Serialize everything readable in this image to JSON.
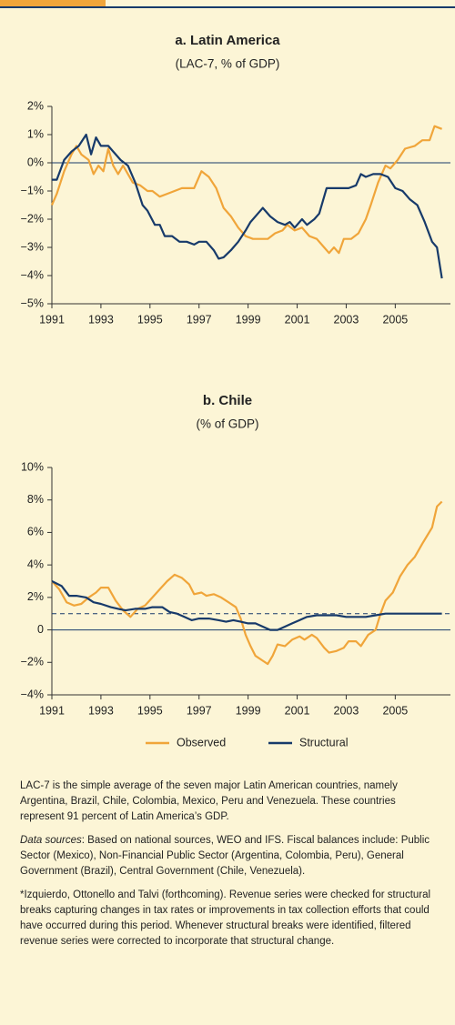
{
  "chart_data": [
    {
      "type": "line",
      "title": "a. Latin America",
      "subtitle": "(LAC-7, % of GDP)",
      "xlim": [
        1991,
        2007.25
      ],
      "xticks": [
        1991,
        1993,
        1995,
        1997,
        1999,
        2001,
        2003,
        2005
      ],
      "ylim": [
        -5,
        2
      ],
      "yticks": [
        {
          "value": 2,
          "label": "2%"
        },
        {
          "value": 1,
          "label": "1%"
        },
        {
          "value": 0,
          "label": "0%"
        },
        {
          "value": -1,
          "label": "−1%"
        },
        {
          "value": -2,
          "label": "−2%"
        },
        {
          "value": -3,
          "label": "−3%"
        },
        {
          "value": -4,
          "label": "−4%"
        },
        {
          "value": -5,
          "label": "−5%"
        }
      ],
      "series": [
        {
          "color": "#f0a53a",
          "x": [
            1991.0,
            1991.2,
            1991.5,
            1991.8,
            1992.0,
            1992.2,
            1992.5,
            1992.7,
            1992.9,
            1993.1,
            1993.3,
            1993.5,
            1993.7,
            1993.9,
            1994.1,
            1994.3,
            1994.6,
            1994.9,
            1995.1,
            1995.4,
            1995.7,
            1996.0,
            1996.3,
            1996.8,
            1997.1,
            1997.4,
            1997.7,
            1998.0,
            1998.3,
            1998.6,
            1998.9,
            1999.2,
            1999.5,
            1999.8,
            2000.1,
            2000.4,
            2000.6,
            2000.9,
            2001.2,
            2001.5,
            2001.8,
            2002.1,
            2002.3,
            2002.5,
            2002.7,
            2002.9,
            2003.2,
            2003.5,
            2003.8,
            2004.0,
            2004.3,
            2004.6,
            2004.8,
            2005.1,
            2005.4,
            2005.8,
            2006.1,
            2006.4,
            2006.6,
            2006.9
          ],
          "values": [
            -1.5,
            -1.1,
            -0.3,
            0.3,
            0.6,
            0.3,
            0.1,
            -0.4,
            -0.1,
            -0.3,
            0.5,
            -0.1,
            -0.4,
            -0.1,
            -0.4,
            -0.7,
            -0.8,
            -1.0,
            -1.0,
            -1.2,
            -1.1,
            -1.0,
            -0.9,
            -0.9,
            -0.3,
            -0.5,
            -0.9,
            -1.6,
            -1.9,
            -2.3,
            -2.6,
            -2.7,
            -2.7,
            -2.7,
            -2.5,
            -2.4,
            -2.2,
            -2.4,
            -2.3,
            -2.6,
            -2.7,
            -3.0,
            -3.2,
            -3.0,
            -3.2,
            -2.7,
            -2.7,
            -2.5,
            -2.0,
            -1.5,
            -0.7,
            -0.1,
            -0.2,
            0.1,
            0.5,
            0.6,
            0.8,
            0.8,
            1.3,
            1.2
          ]
        },
        {
          "color": "#173a6a",
          "x": [
            1991.0,
            1991.2,
            1991.5,
            1991.8,
            1992.1,
            1992.4,
            1992.6,
            1992.8,
            1993.0,
            1993.3,
            1993.5,
            1993.8,
            1994.1,
            1994.4,
            1994.7,
            1994.9,
            1995.2,
            1995.4,
            1995.6,
            1995.9,
            1996.2,
            1996.5,
            1996.8,
            1997.0,
            1997.3,
            1997.6,
            1997.8,
            1998.0,
            1998.3,
            1998.6,
            1998.9,
            1999.1,
            1999.4,
            1999.6,
            1999.9,
            2000.2,
            2000.5,
            2000.7,
            2000.9,
            2001.2,
            2001.4,
            2001.7,
            2001.9,
            2002.2,
            2002.5,
            2002.8,
            2003.1,
            2003.4,
            2003.6,
            2003.8,
            2004.1,
            2004.4,
            2004.7,
            2005.0,
            2005.3,
            2005.6,
            2005.9,
            2006.2,
            2006.5,
            2006.7,
            2006.9
          ],
          "values": [
            -0.6,
            -0.6,
            0.1,
            0.4,
            0.6,
            1.0,
            0.3,
            0.9,
            0.6,
            0.6,
            0.4,
            0.1,
            -0.1,
            -0.7,
            -1.5,
            -1.7,
            -2.2,
            -2.2,
            -2.6,
            -2.6,
            -2.8,
            -2.8,
            -2.9,
            -2.8,
            -2.8,
            -3.1,
            -3.4,
            -3.35,
            -3.1,
            -2.8,
            -2.4,
            -2.1,
            -1.8,
            -1.6,
            -1.9,
            -2.1,
            -2.2,
            -2.1,
            -2.3,
            -2.0,
            -2.2,
            -2.0,
            -1.8,
            -0.9,
            -0.9,
            -0.9,
            -0.9,
            -0.8,
            -0.4,
            -0.5,
            -0.4,
            -0.4,
            -0.5,
            -0.9,
            -1.0,
            -1.3,
            -1.5,
            -2.1,
            -2.8,
            -3.0,
            -4.1
          ]
        }
      ]
    },
    {
      "type": "line",
      "title": "b. Chile",
      "subtitle": "(% of GDP)",
      "xlim": [
        1991,
        2007.25
      ],
      "xticks": [
        1991,
        1993,
        1995,
        1997,
        1999,
        2001,
        2003,
        2005
      ],
      "ylim": [
        -4,
        10
      ],
      "yticks": [
        {
          "value": 10,
          "label": "10%"
        },
        {
          "value": 8,
          "label": "8%"
        },
        {
          "value": 6,
          "label": "6%"
        },
        {
          "value": 4,
          "label": "4%"
        },
        {
          "value": 2,
          "label": "2%"
        },
        {
          "value": 0,
          "label": "0"
        },
        {
          "value": -2,
          "label": "−2%"
        },
        {
          "value": -4,
          "label": "−4%"
        }
      ],
      "hline": 1,
      "series": [
        {
          "name": "Observed",
          "color": "#f0a53a",
          "x": [
            1991.0,
            1991.3,
            1991.6,
            1991.9,
            1992.2,
            1992.5,
            1992.8,
            1993.0,
            1993.3,
            1993.6,
            1993.9,
            1994.2,
            1994.5,
            1994.8,
            1995.1,
            1995.4,
            1995.7,
            1996.0,
            1996.3,
            1996.6,
            1996.8,
            1997.1,
            1997.3,
            1997.6,
            1997.9,
            1998.2,
            1998.5,
            1998.7,
            1998.9,
            1999.1,
            1999.3,
            1999.6,
            1999.8,
            2000.0,
            2000.2,
            2000.5,
            2000.8,
            2001.1,
            2001.3,
            2001.6,
            2001.8,
            2002.1,
            2002.3,
            2002.6,
            2002.9,
            2003.1,
            2003.4,
            2003.6,
            2003.9,
            2004.2,
            2004.4,
            2004.6,
            2004.9,
            2005.2,
            2005.5,
            2005.8,
            2006.1,
            2006.3,
            2006.5,
            2006.7,
            2006.9
          ],
          "values": [
            3.0,
            2.5,
            1.7,
            1.5,
            1.6,
            2.0,
            2.3,
            2.6,
            2.6,
            1.8,
            1.2,
            0.8,
            1.3,
            1.5,
            2.0,
            2.5,
            3.0,
            3.4,
            3.2,
            2.8,
            2.2,
            2.3,
            2.1,
            2.2,
            2.0,
            1.7,
            1.4,
            0.7,
            -0.3,
            -1.0,
            -1.6,
            -1.9,
            -2.1,
            -1.6,
            -0.9,
            -1.0,
            -0.6,
            -0.4,
            -0.6,
            -0.3,
            -0.5,
            -1.1,
            -1.4,
            -1.3,
            -1.1,
            -0.7,
            -0.7,
            -1.0,
            -0.3,
            0.0,
            1.0,
            1.8,
            2.3,
            3.3,
            4.0,
            4.5,
            5.3,
            5.8,
            6.3,
            7.6,
            7.9
          ]
        },
        {
          "name": "Structural",
          "color": "#173a6a",
          "x": [
            1991.0,
            1991.4,
            1991.7,
            1992.0,
            1992.4,
            1992.7,
            1993.0,
            1993.4,
            1993.7,
            1994.0,
            1994.4,
            1994.8,
            1995.1,
            1995.5,
            1995.8,
            1996.1,
            1996.4,
            1996.7,
            1997.0,
            1997.4,
            1997.8,
            1998.1,
            1998.4,
            1998.7,
            1999.0,
            1999.3,
            1999.6,
            1999.9,
            2000.2,
            2000.5,
            2000.8,
            2001.1,
            2001.4,
            2001.8,
            2002.2,
            2002.6,
            2003.0,
            2003.4,
            2003.8,
            2004.2,
            2004.6,
            2005.0,
            2005.5,
            2006.0,
            2006.5,
            2006.9
          ],
          "values": [
            3.0,
            2.7,
            2.1,
            2.1,
            2.0,
            1.7,
            1.6,
            1.4,
            1.3,
            1.2,
            1.3,
            1.3,
            1.4,
            1.4,
            1.1,
            1.0,
            0.8,
            0.6,
            0.7,
            0.7,
            0.6,
            0.5,
            0.6,
            0.5,
            0.4,
            0.4,
            0.2,
            0.0,
            0.0,
            0.2,
            0.4,
            0.6,
            0.8,
            0.9,
            0.9,
            0.9,
            0.8,
            0.8,
            0.8,
            0.9,
            1.0,
            1.0,
            1.0,
            1.0,
            1.0,
            1.0
          ]
        }
      ]
    }
  ],
  "notes": [
    {
      "text": "LAC-7 is the simple average of the seven major Latin American countries, namely Argentina, Brazil, Chile, Colombia, Mexico, Peru and Venezuela. These countries represent 91 percent of Latin America’s GDP."
    },
    {
      "lead": "Data sources",
      "text": ": Based on national sources, WEO and IFS. Fiscal balances include: Public Sector (Mexico), Non-Financial Public Sector (Argentina, Colombia, Peru), General Government (Brazil), Central Government (Chile, Venezuela)."
    },
    {
      "text": "*Izquierdo, Ottonello and Talvi (forthcoming). Revenue series were checked for structural breaks capturing changes in tax rates or improvements in tax collection efforts that could have occurred during this period. Whenever structural breaks were identified, filtered revenue series were corrected to incorporate that structural change."
    }
  ]
}
